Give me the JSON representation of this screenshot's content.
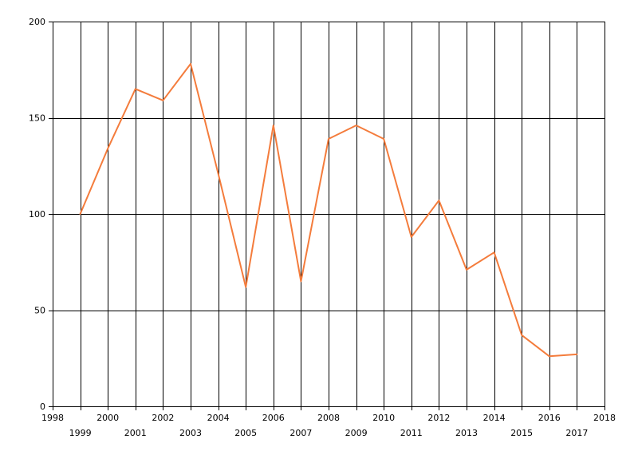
{
  "chart_data": {
    "type": "line",
    "title": "",
    "xlabel": "",
    "ylabel": "",
    "xlim": [
      1998,
      2018
    ],
    "ylim": [
      0,
      200
    ],
    "x_ticks": [
      1998,
      1999,
      2000,
      2001,
      2002,
      2003,
      2004,
      2005,
      2006,
      2007,
      2008,
      2009,
      2010,
      2011,
      2012,
      2013,
      2014,
      2015,
      2016,
      2017,
      2018
    ],
    "y_ticks": [
      0,
      50,
      100,
      150,
      200
    ],
    "grid": true,
    "legend": "none",
    "series": [
      {
        "color": "#f47c3c",
        "x": [
          1999,
          2000,
          2001,
          2002,
          2003,
          2004,
          2005,
          2006,
          2007,
          2008,
          2009,
          2010,
          2011,
          2012,
          2013,
          2014,
          2015,
          2016,
          2017
        ],
        "values": [
          100,
          134,
          165,
          159,
          178,
          121,
          62,
          146,
          65,
          139,
          146,
          139,
          88,
          107,
          71,
          80,
          37,
          26,
          27
        ]
      }
    ]
  }
}
